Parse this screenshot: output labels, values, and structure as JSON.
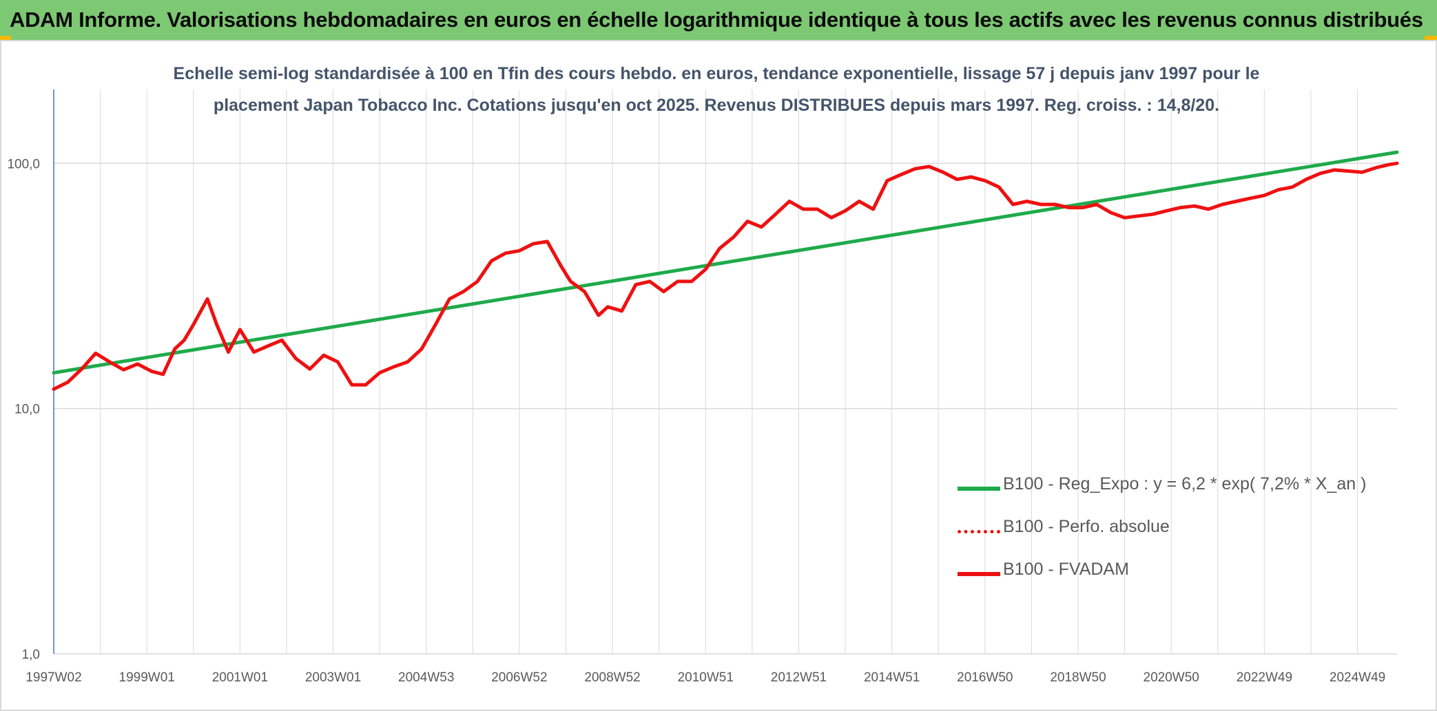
{
  "banner": {
    "title": "ADAM Informe. Valorisations hebdomadaires en euros en échelle logarithmique identique à tous les actifs avec les revenus connus distribués"
  },
  "colors": {
    "banner_bg": "#7dc873",
    "corner_accent": "#f5b800",
    "trend_line": "#1faa4b",
    "price_line": "#ee1111",
    "grid": "#d9d9d9",
    "title_text": "#44546a"
  },
  "chart_data": {
    "type": "line",
    "title_line1": "Echelle semi-log standardisée à 100 en Tfin des cours hebdo. en euros, tendance exponentielle, lissage 57 j depuis janv 1997 pour le",
    "title_line2": "placement Japan Tobacco Inc. Cotations jusqu'en oct 2025. Revenus DISTRIBUES depuis mars 1997. Reg. croiss. : 14,8/20.",
    "y_scale": "log",
    "ylim": [
      1,
      200
    ],
    "y_ticks": [
      "1,0",
      "10,0",
      "100,0"
    ],
    "y_tick_values": [
      1,
      10,
      100
    ],
    "xlim": [
      1997.0,
      2025.85
    ],
    "x_ticks": [
      "1997W02",
      "1999W01",
      "2001W01",
      "2003W01",
      "2004W53",
      "2006W52",
      "2008W52",
      "2010W51",
      "2012W51",
      "2014W51",
      "2016W50",
      "2018W50",
      "2020W50",
      "2022W49",
      "2024W49"
    ],
    "x_tick_values": [
      1997.0,
      1999.0,
      2001.0,
      2003.0,
      2005.0,
      2007.0,
      2009.0,
      2011.0,
      2013.0,
      2015.0,
      2017.0,
      2019.0,
      2021.0,
      2023.0,
      2025.0
    ],
    "grid": "vertical and horizontal",
    "legend_position": "bottom-right",
    "series": [
      {
        "name": "B100 - Reg_Expo : y = 6,2 * exp( 7,2% *  X_an )",
        "style": "solid-thick",
        "color": "#1faa4b",
        "x": [
          1997.0,
          2025.85
        ],
        "values": [
          14.0,
          111.0
        ]
      },
      {
        "name": "B100 - Perfo. absolue",
        "style": "dotted",
        "color": "#ee1111",
        "x": [],
        "values": []
      },
      {
        "name": "B100 - FVADAM",
        "style": "solid-thick",
        "color": "#ee1111",
        "x": [
          1997.0,
          1997.3,
          1997.6,
          1997.9,
          1998.2,
          1998.5,
          1998.8,
          1999.1,
          1999.35,
          1999.6,
          1999.8,
          2000.0,
          2000.3,
          2000.5,
          2000.75,
          2001.0,
          2001.3,
          2001.6,
          2001.9,
          2002.2,
          2002.5,
          2002.8,
          2003.1,
          2003.4,
          2003.7,
          2004.0,
          2004.3,
          2004.6,
          2004.9,
          2005.2,
          2005.5,
          2005.8,
          2006.1,
          2006.4,
          2006.7,
          2007.0,
          2007.3,
          2007.6,
          2007.9,
          2008.1,
          2008.4,
          2008.7,
          2008.9,
          2009.2,
          2009.5,
          2009.8,
          2010.1,
          2010.4,
          2010.7,
          2011.0,
          2011.3,
          2011.6,
          2011.9,
          2012.2,
          2012.5,
          2012.8,
          2013.1,
          2013.4,
          2013.7,
          2014.0,
          2014.3,
          2014.6,
          2014.9,
          2015.2,
          2015.5,
          2015.8,
          2016.1,
          2016.4,
          2016.7,
          2017.0,
          2017.3,
          2017.6,
          2017.9,
          2018.2,
          2018.5,
          2018.8,
          2019.1,
          2019.4,
          2019.7,
          2020.0,
          2020.3,
          2020.6,
          2020.9,
          2021.2,
          2021.5,
          2021.8,
          2022.1,
          2022.4,
          2022.7,
          2023.0,
          2023.3,
          2023.6,
          2023.9,
          2024.2,
          2024.5,
          2024.8,
          2025.1,
          2025.4,
          2025.7,
          2025.85
        ],
        "values": [
          12.0,
          12.8,
          14.5,
          16.8,
          15.5,
          14.4,
          15.2,
          14.2,
          13.8,
          17.5,
          19.0,
          22.0,
          28.0,
          22.0,
          17.0,
          21.0,
          17.0,
          18.0,
          19.0,
          16.0,
          14.5,
          16.5,
          15.5,
          12.5,
          12.5,
          14.0,
          14.8,
          15.5,
          17.5,
          22.0,
          28.0,
          30.0,
          33.0,
          40.0,
          43.0,
          44.0,
          47.0,
          48.0,
          38.0,
          33.0,
          30.0,
          24.0,
          26.0,
          25.0,
          32.0,
          33.0,
          30.0,
          33.0,
          33.0,
          37.0,
          45.0,
          50.0,
          58.0,
          55.0,
          62.0,
          70.0,
          65.0,
          65.0,
          60.0,
          64.0,
          70.0,
          65.0,
          85.0,
          90.0,
          95.0,
          97.0,
          92.0,
          86.0,
          88.0,
          85.0,
          80.0,
          68.0,
          70.0,
          68.0,
          68.0,
          66.0,
          66.0,
          68.0,
          63.0,
          60.0,
          61.0,
          62.0,
          64.0,
          66.0,
          67.0,
          65.0,
          68.0,
          70.0,
          72.0,
          74.0,
          78.0,
          80.0,
          86.0,
          91.0,
          94.0,
          93.0,
          92.0,
          96.0,
          99.0,
          100.0
        ]
      }
    ]
  }
}
